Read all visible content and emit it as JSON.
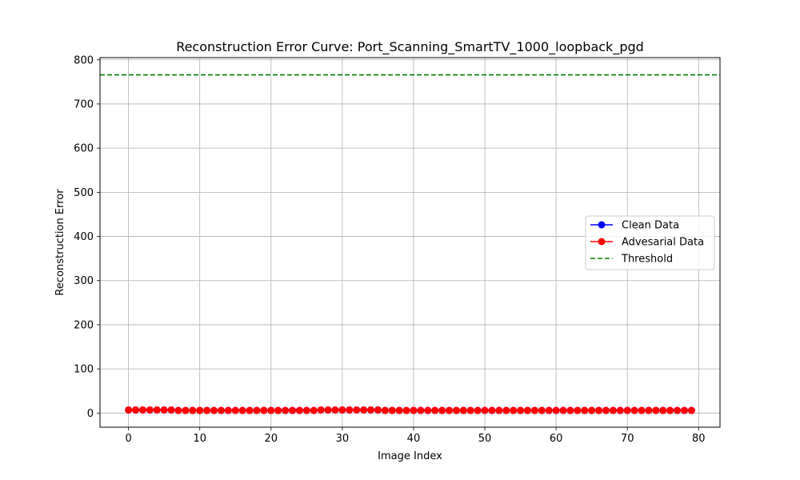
{
  "chart_data": {
    "type": "line",
    "title": "Reconstruction Error Curve: Port_Scanning_SmartTV_1000_loopback_pgd",
    "xlabel": "Image Index",
    "ylabel": "Reconstruction Error",
    "xlim": [
      -4,
      83
    ],
    "ylim": [
      -32,
      805
    ],
    "xticks": [
      0,
      10,
      20,
      30,
      40,
      50,
      60,
      70,
      80
    ],
    "yticks": [
      0,
      100,
      200,
      300,
      400,
      500,
      600,
      700,
      800
    ],
    "grid": true,
    "legend_position": "center-right",
    "x": [
      0,
      1,
      2,
      3,
      4,
      5,
      6,
      7,
      8,
      9,
      10,
      11,
      12,
      13,
      14,
      15,
      16,
      17,
      18,
      19,
      20,
      21,
      22,
      23,
      24,
      25,
      26,
      27,
      28,
      29,
      30,
      31,
      32,
      33,
      34,
      35,
      36,
      37,
      38,
      39,
      40,
      41,
      42,
      43,
      44,
      45,
      46,
      47,
      48,
      49,
      50,
      51,
      52,
      53,
      54,
      55,
      56,
      57,
      58,
      59,
      60,
      61,
      62,
      63,
      64,
      65,
      66,
      67,
      68,
      69,
      70,
      71,
      72,
      73,
      74,
      75,
      76,
      77,
      78,
      79
    ],
    "series": [
      {
        "name": "Clean Data",
        "color": "#0000ff",
        "style": "solid-marker",
        "values": [
          7,
          7,
          7,
          7,
          7,
          7,
          7,
          6,
          6,
          6,
          6,
          6,
          6,
          6,
          6,
          6,
          6,
          6,
          6,
          6,
          6,
          6,
          6,
          6,
          6,
          6,
          6,
          7,
          7,
          7,
          7,
          7,
          7,
          7,
          7,
          7,
          6,
          6,
          6,
          6,
          6,
          6,
          6,
          6,
          6,
          6,
          6,
          6,
          6,
          6,
          6,
          6,
          6,
          6,
          6,
          6,
          6,
          6,
          6,
          6,
          6,
          6,
          6,
          6,
          6,
          6,
          6,
          6,
          6,
          6,
          6,
          6,
          6,
          6,
          6,
          6,
          6,
          6,
          6,
          6
        ]
      },
      {
        "name": "Advesarial Data",
        "color": "#ff0000",
        "style": "solid-marker",
        "values": [
          7,
          7,
          7,
          7,
          7,
          7,
          7,
          6,
          6,
          6,
          6,
          6,
          6,
          6,
          6,
          6,
          6,
          6,
          6,
          6,
          6,
          6,
          6,
          6,
          6,
          6,
          6,
          7,
          7,
          7,
          7,
          7,
          7,
          7,
          7,
          7,
          6,
          6,
          6,
          6,
          6,
          6,
          6,
          6,
          6,
          6,
          6,
          6,
          6,
          6,
          6,
          6,
          6,
          6,
          6,
          6,
          6,
          6,
          6,
          6,
          6,
          6,
          6,
          6,
          6,
          6,
          6,
          6,
          6,
          6,
          6,
          6,
          6,
          6,
          6,
          6,
          6,
          6,
          6,
          6
        ]
      },
      {
        "name": "Threshold",
        "color": "#008000",
        "style": "dashed",
        "value": 766
      }
    ]
  }
}
